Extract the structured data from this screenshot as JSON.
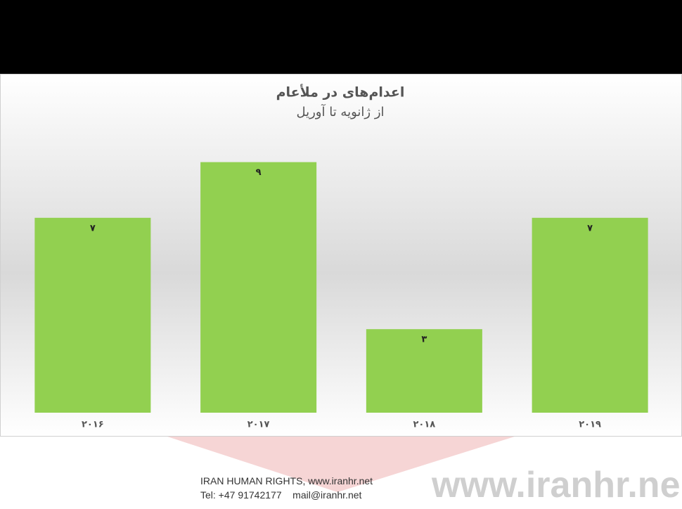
{
  "chart_data": {
    "type": "bar",
    "title": "اعدام‌های در ملأعام",
    "subtitle": "از ژانویه تا آوریل",
    "categories": [
      "۲۰۱۶",
      "۲۰۱۷",
      "۲۰۱۸",
      "۲۰۱۹"
    ],
    "values": [
      7,
      9,
      3,
      7
    ],
    "value_labels": [
      "۷",
      "۹",
      "۳",
      "۷"
    ],
    "color": "#92d050",
    "ylim": [
      0,
      10
    ]
  },
  "footer": {
    "line1": "IRAN HUMAN RIGHTS, www.iranhr.net",
    "line2": "Tel: +47 91742177    mail@iranhr.net",
    "watermark": "www.iranhr.ne"
  }
}
